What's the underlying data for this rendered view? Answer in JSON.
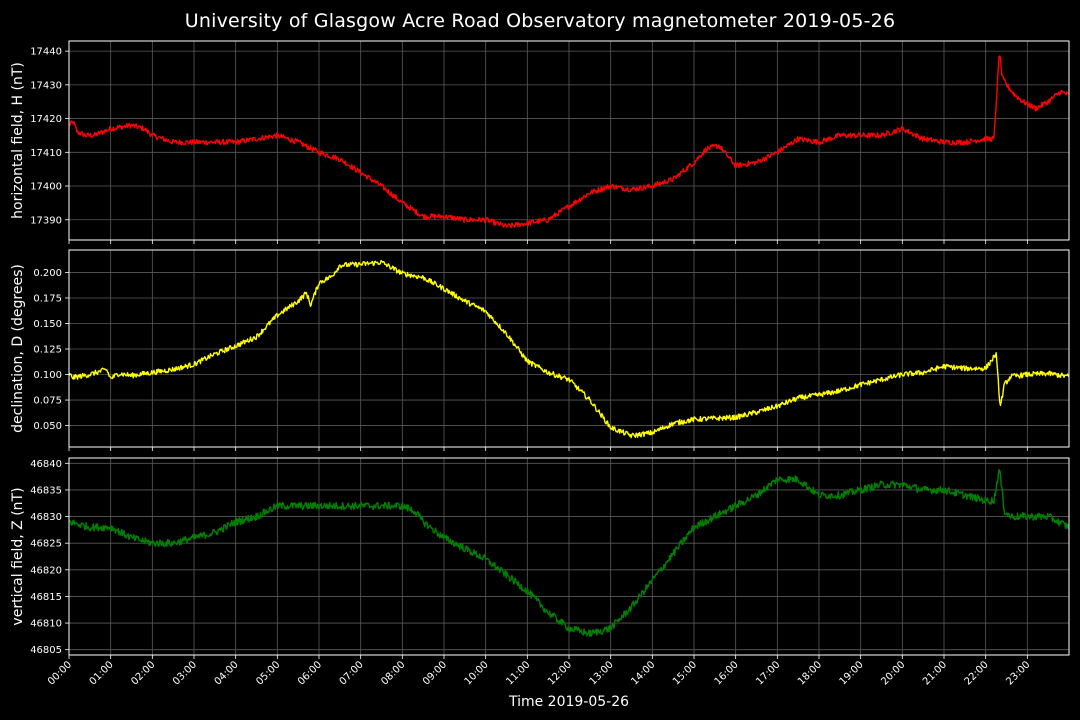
{
  "chart_data": {
    "type": "line",
    "title": "University of Glasgow Acre Road Observatory magnetometer 2019-05-26",
    "xlabel": "Time 2019-05-26",
    "x_ticks": [
      "00:00",
      "01:00",
      "02:00",
      "03:00",
      "04:00",
      "05:00",
      "06:00",
      "07:00",
      "08:00",
      "09:00",
      "10:00",
      "11:00",
      "12:00",
      "13:00",
      "14:00",
      "15:00",
      "16:00",
      "17:00",
      "18:00",
      "19:00",
      "20:00",
      "21:00",
      "22:00",
      "23:00"
    ],
    "xlim_hours": [
      0,
      24
    ],
    "grid": true,
    "panels": [
      {
        "name": "H",
        "ylabel": "horizontal field, H (nT)",
        "color": "#ff0000",
        "ylim": [
          17384,
          17443
        ],
        "yticks": [
          "17390",
          "17400",
          "17410",
          "17420",
          "17430",
          "17440"
        ],
        "noise": 0.8,
        "x": [
          0,
          0.1,
          0.2,
          0.4,
          0.6,
          1.0,
          1.5,
          1.8,
          2.0,
          2.5,
          3.0,
          3.5,
          4.0,
          4.5,
          5.0,
          5.5,
          6.0,
          6.5,
          7.0,
          7.5,
          8.0,
          8.5,
          9.0,
          9.5,
          10.0,
          10.5,
          11.0,
          11.5,
          12.0,
          12.5,
          13.0,
          13.5,
          14.0,
          14.5,
          15.0,
          15.3,
          15.6,
          16.0,
          16.5,
          17.0,
          17.5,
          18.0,
          18.5,
          19.0,
          19.5,
          20.0,
          20.5,
          21.0,
          21.5,
          22.0,
          22.2,
          22.33,
          22.4,
          22.5,
          22.7,
          22.9,
          23.2,
          23.5,
          23.8,
          24.0
        ],
        "y": [
          17418,
          17419,
          17416,
          17415,
          17415,
          17417,
          17418,
          17417,
          17415,
          17413,
          17413,
          17413,
          17413,
          17414,
          17415,
          17413,
          17410,
          17408,
          17404,
          17400,
          17395,
          17391,
          17391,
          17390,
          17390,
          17388,
          17389,
          17390,
          17394,
          17398,
          17400,
          17399,
          17400,
          17402,
          17407,
          17411,
          17412,
          17406,
          17407,
          17410,
          17414,
          17413,
          17415,
          17415,
          17415,
          17417,
          17414,
          17413,
          17413,
          17414,
          17414,
          17440,
          17432,
          17430,
          17427,
          17425,
          17423,
          17425,
          17428,
          17427
        ]
      },
      {
        "name": "D",
        "ylabel": "declination, D (degrees)",
        "color": "#ffff00",
        "ylim": [
          0.029,
          0.222
        ],
        "yticks": [
          "0.050",
          "0.075",
          "0.100",
          "0.125",
          "0.150",
          "0.175",
          "0.200"
        ],
        "noise": 0.0025,
        "x": [
          0,
          0.1,
          0.5,
          0.9,
          1.0,
          1.2,
          1.5,
          2.0,
          2.5,
          3.0,
          3.5,
          4.0,
          4.5,
          5.0,
          5.5,
          5.7,
          5.8,
          6.0,
          6.3,
          6.5,
          7.0,
          7.5,
          8.0,
          8.5,
          9.0,
          9.5,
          10.0,
          10.5,
          11.0,
          11.5,
          12.0,
          12.5,
          13.0,
          13.5,
          14.0,
          14.5,
          15.0,
          15.5,
          16.0,
          16.5,
          17.0,
          17.5,
          18.0,
          18.5,
          19.0,
          19.5,
          20.0,
          20.5,
          21.0,
          21.5,
          22.0,
          22.25,
          22.35,
          22.45,
          22.6,
          22.8,
          23.0,
          23.5,
          24.0
        ],
        "y": [
          0.1,
          0.097,
          0.1,
          0.105,
          0.096,
          0.101,
          0.099,
          0.102,
          0.105,
          0.11,
          0.12,
          0.128,
          0.137,
          0.158,
          0.172,
          0.18,
          0.168,
          0.19,
          0.196,
          0.207,
          0.208,
          0.21,
          0.199,
          0.195,
          0.184,
          0.172,
          0.162,
          0.14,
          0.113,
          0.102,
          0.095,
          0.075,
          0.048,
          0.04,
          0.043,
          0.052,
          0.056,
          0.057,
          0.058,
          0.063,
          0.069,
          0.077,
          0.08,
          0.084,
          0.09,
          0.095,
          0.1,
          0.102,
          0.108,
          0.106,
          0.106,
          0.12,
          0.068,
          0.09,
          0.098,
          0.099,
          0.1,
          0.101,
          0.098
        ]
      },
      {
        "name": "Z",
        "ylabel": "vertical field, Z (nT)",
        "color": "#008000",
        "ylim": [
          46804,
          46841
        ],
        "yticks": [
          "46805",
          "46810",
          "46815",
          "46820",
          "46825",
          "46830",
          "46835",
          "46840"
        ],
        "noise": 0.7,
        "x": [
          0,
          0.5,
          1.0,
          1.5,
          2.0,
          2.5,
          3.0,
          3.5,
          4.0,
          4.5,
          5.0,
          5.5,
          6.0,
          6.5,
          7.0,
          7.5,
          8.0,
          8.3,
          8.5,
          9.0,
          9.5,
          10.0,
          10.5,
          11.0,
          11.5,
          12.0,
          12.5,
          13.0,
          13.5,
          14.0,
          14.5,
          15.0,
          15.5,
          16.0,
          16.5,
          17.0,
          17.5,
          18.0,
          18.5,
          19.0,
          19.5,
          20.0,
          20.5,
          21.0,
          21.5,
          22.0,
          22.2,
          22.33,
          22.45,
          22.6,
          23.0,
          23.5,
          24.0
        ],
        "y": [
          46829,
          46828,
          46828,
          46826,
          46825,
          46825,
          46826,
          46827,
          46829,
          46830,
          46832,
          46832,
          46832,
          46832,
          46832,
          46832,
          46832,
          46831,
          46829,
          46826,
          46824,
          46822,
          46819,
          46816,
          46812,
          46809,
          46808,
          46809,
          46813,
          46818,
          46823,
          46828,
          46830,
          46832,
          46834,
          46837,
          46837,
          46834,
          46834,
          46835,
          46836,
          46836,
          46835,
          46835,
          46834,
          46833,
          46833,
          46839,
          46831,
          46830,
          46830,
          46830,
          46828
        ]
      }
    ]
  }
}
